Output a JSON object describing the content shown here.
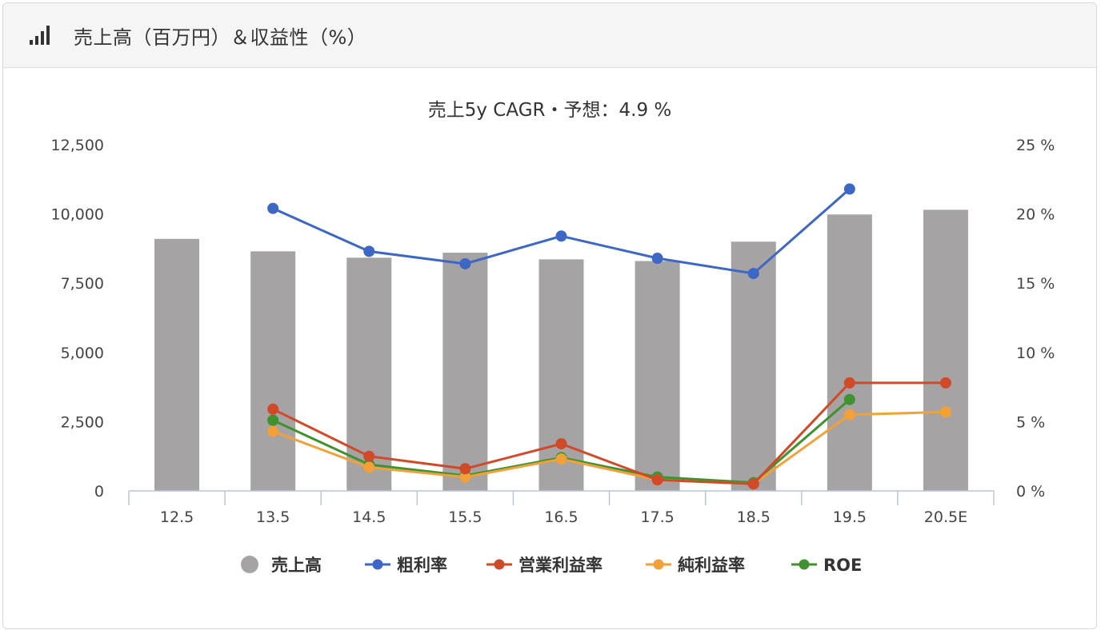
{
  "panel": {
    "title": "売上高（百万円）＆収益性（%）",
    "icon": "bar-signal-icon"
  },
  "chart_data": {
    "type": "bar",
    "subtitle": "売上5y CAGR・予想：4.9 %",
    "categories": [
      "12.5",
      "13.5",
      "14.5",
      "15.5",
      "16.5",
      "17.5",
      "18.5",
      "19.5",
      "20.5E"
    ],
    "left_axis": {
      "ylim": [
        0,
        12500
      ],
      "ticks": [
        "0",
        "2,500",
        "5,000",
        "7,500",
        "10,000",
        "12,500"
      ]
    },
    "right_axis": {
      "ylim": [
        0,
        25
      ],
      "ticks": [
        "0 %",
        "5 %",
        "10 %",
        "15 %",
        "20 %",
        "25 %"
      ]
    },
    "bar_series": {
      "name": "売上高",
      "color": "#a5a3a4",
      "values": [
        9100,
        8650,
        8420,
        8600,
        8360,
        8300,
        9000,
        9980,
        10150
      ]
    },
    "line_series": [
      {
        "name": "粗利率",
        "color": "#3d67c5",
        "values": [
          null,
          20.4,
          17.3,
          16.4,
          18.4,
          16.8,
          15.7,
          21.8,
          null
        ]
      },
      {
        "name": "営業利益率",
        "color": "#d14a28",
        "values": [
          null,
          5.9,
          2.5,
          1.6,
          3.4,
          0.8,
          0.5,
          7.8,
          7.8
        ]
      },
      {
        "name": "純利益率",
        "color": "#f2a03a",
        "values": [
          null,
          4.3,
          1.7,
          1.0,
          2.3,
          0.8,
          0.5,
          5.5,
          5.7
        ]
      },
      {
        "name": "ROE",
        "color": "#3f922e",
        "values": [
          null,
          5.1,
          1.9,
          1.1,
          2.4,
          1.0,
          0.6,
          6.6,
          null
        ]
      }
    ],
    "legend_position": "bottom",
    "grid": false
  }
}
